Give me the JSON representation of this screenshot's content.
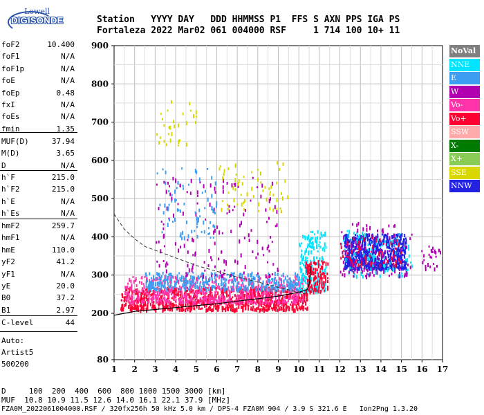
{
  "logo": {
    "line1": "Lowell",
    "line2": "DIGISONDE"
  },
  "header": {
    "row1": "Station   YYYY DAY   DDD HHMMSS P1  FFS S AXN PPS IGA PS",
    "row2": "Fortaleza 2022 Mar02 061 004000 RSF     1 714 100 10+ 11"
  },
  "params_a": [
    {
      "k": "foF2",
      "v": "10.400"
    },
    {
      "k": "foF1",
      "v": "N/A"
    },
    {
      "k": "foF1p",
      "v": "N/A"
    },
    {
      "k": "foE",
      "v": "N/A"
    },
    {
      "k": "foEp",
      "v": "0.48"
    },
    {
      "k": "fxI",
      "v": "N/A"
    },
    {
      "k": "foEs",
      "v": "N/A"
    },
    {
      "k": "fmin",
      "v": "1.35"
    }
  ],
  "params_b": [
    {
      "k": "MUF(D)",
      "v": "37.94"
    },
    {
      "k": "M(D)",
      "v": "3.65"
    },
    {
      "k": "D",
      "v": "N/A"
    }
  ],
  "params_c": [
    {
      "k": "h`F",
      "v": "215.0"
    },
    {
      "k": "h`F2",
      "v": "215.0"
    },
    {
      "k": "h`E",
      "v": "N/A"
    },
    {
      "k": "h`Es",
      "v": "N/A"
    }
  ],
  "params_d": [
    {
      "k": "hmF2",
      "v": "259.7"
    },
    {
      "k": "hmF1",
      "v": "N/A"
    },
    {
      "k": "hmE",
      "v": "110.0"
    },
    {
      "k": "yF2",
      "v": "41.2"
    },
    {
      "k": "yF1",
      "v": "N/A"
    },
    {
      "k": "yE",
      "v": "20.0"
    },
    {
      "k": "B0",
      "v": "37.2"
    },
    {
      "k": "B1",
      "v": "2.97"
    }
  ],
  "params_e": [
    {
      "k": "C-level",
      "v": "44"
    }
  ],
  "auto": [
    "Auto:",
    "Artist5",
    "500200"
  ],
  "legend": [
    {
      "label": "NoVal",
      "color": "#808080"
    },
    {
      "label": "NNE",
      "color": "#00e5ff"
    },
    {
      "label": "E",
      "color": "#3d9df0"
    },
    {
      "label": "W",
      "color": "#b000b0"
    },
    {
      "label": "Vo-",
      "color": "#ff33aa"
    },
    {
      "label": "Vo+",
      "color": "#ff0033"
    },
    {
      "label": "SSW",
      "color": "#ffaaaa"
    },
    {
      "label": "X-",
      "color": "#007a00"
    },
    {
      "label": "X+",
      "color": "#88cc55"
    },
    {
      "label": "SSE",
      "color": "#d8d800"
    },
    {
      "label": "NNW",
      "color": "#2222e0"
    }
  ],
  "footer": {
    "row1": "D     100  200  400  600  800 1000 1500 3000 [km]",
    "row2": "MUF  10.8 10.9 11.5 12.6 14.0 16.1 22.1 37.9 [MHz]",
    "row3": "FZA0M_2022061004000.RSF / 320fx256h 50 kHz 5.0 km / DPS-4 FZA0M 904 / 3.9 S 321.6 E   Ion2Png 1.3.20"
  },
  "chart_data": {
    "type": "scatter",
    "x_ticks": [
      "1",
      "2",
      "3",
      "4",
      "5",
      "6",
      "7",
      "8",
      "9",
      "10",
      "11",
      "12",
      "13",
      "14",
      "15",
      "16",
      "17"
    ],
    "y_ticks": [
      "80",
      "200",
      "300",
      "400",
      "500",
      "600",
      "700",
      "800",
      "900"
    ],
    "x_range": [
      1,
      17
    ],
    "y_range": [
      80,
      900
    ],
    "grid": true,
    "traces": {
      "solid_profile": [
        [
          1.0,
          195
        ],
        [
          1.5,
          200
        ],
        [
          2,
          205
        ],
        [
          3,
          210
        ],
        [
          4,
          215
        ],
        [
          5,
          220
        ],
        [
          6,
          225
        ],
        [
          7,
          232
        ],
        [
          8,
          238
        ],
        [
          9,
          245
        ],
        [
          10,
          255
        ],
        [
          10.4,
          262
        ],
        [
          10.5,
          275
        ],
        [
          10.55,
          300
        ],
        [
          10.6,
          325
        ]
      ],
      "dashed_profile": [
        [
          1.0,
          460
        ],
        [
          1.5,
          420
        ],
        [
          2,
          395
        ],
        [
          2.5,
          375
        ],
        [
          3,
          365
        ],
        [
          4,
          345
        ],
        [
          5,
          325
        ],
        [
          6,
          310
        ],
        [
          7,
          295
        ],
        [
          8,
          282
        ],
        [
          9,
          268
        ],
        [
          10,
          255
        ],
        [
          10.4,
          250
        ]
      ]
    },
    "echo_clusters": [
      {
        "x0": 1.3,
        "x1": 10.4,
        "y0": 212,
        "y1": 270,
        "legend": "Vo+",
        "density": 900
      },
      {
        "x0": 1.5,
        "x1": 10.2,
        "y0": 230,
        "y1": 300,
        "legend": "Vo-",
        "density": 600
      },
      {
        "x0": 2.5,
        "x1": 10.0,
        "y0": 265,
        "y1": 310,
        "legend": "E",
        "density": 350
      },
      {
        "x0": 3.0,
        "x1": 9.0,
        "y0": 300,
        "y1": 560,
        "legend": "W",
        "density": 160
      },
      {
        "x0": 3.0,
        "x1": 6.0,
        "y0": 400,
        "y1": 590,
        "legend": "E",
        "density": 80
      },
      {
        "x0": 6.0,
        "x1": 9.5,
        "y0": 470,
        "y1": 600,
        "legend": "SSE",
        "density": 60
      },
      {
        "x0": 3.0,
        "x1": 5.0,
        "y0": 640,
        "y1": 780,
        "legend": "SSE",
        "density": 30
      },
      {
        "x0": 10.0,
        "x1": 11.3,
        "y0": 260,
        "y1": 420,
        "legend": "NNE",
        "density": 200
      },
      {
        "x0": 10.3,
        "x1": 11.4,
        "y0": 260,
        "y1": 340,
        "legend": "Vo+",
        "density": 120
      },
      {
        "x0": 12.2,
        "x1": 15.2,
        "y0": 320,
        "y1": 410,
        "legend": "NNW",
        "density": 700
      },
      {
        "x0": 12.0,
        "x1": 15.5,
        "y0": 300,
        "y1": 420,
        "legend": "NNE",
        "density": 120
      },
      {
        "x0": 12.0,
        "x1": 15.5,
        "y0": 300,
        "y1": 440,
        "legend": "W",
        "density": 120
      },
      {
        "x0": 12.0,
        "x1": 15.0,
        "y0": 330,
        "y1": 400,
        "legend": "Vo+",
        "density": 60
      },
      {
        "x0": 15.8,
        "x1": 16.9,
        "y0": 320,
        "y1": 380,
        "legend": "W",
        "density": 25
      }
    ]
  }
}
